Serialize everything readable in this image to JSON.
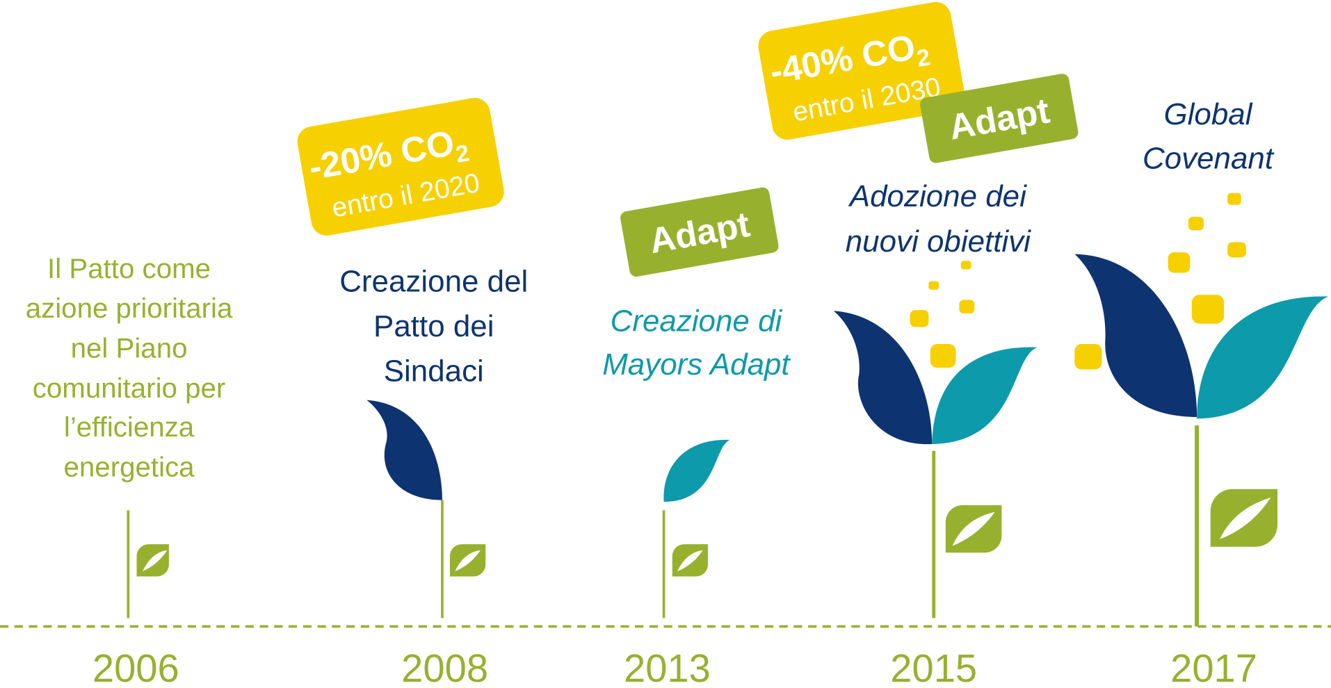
{
  "milestones": [
    {
      "year": "2006",
      "lines": [
        "Il Patto come",
        "azione prioritaria",
        "nel Piano",
        "comunitario per",
        "l’efficienza",
        "energetica"
      ]
    },
    {
      "year": "2008",
      "lines": [
        "Creazione del",
        "Patto dei",
        "Sindaci"
      ],
      "badge": {
        "main": "-20% CO",
        "sub": "2",
        "note": "entro il 2020"
      }
    },
    {
      "year": "2013",
      "lines": [
        "Creazione di",
        "Mayors Adapt"
      ],
      "badge": {
        "main": "Adapt"
      }
    },
    {
      "year": "2015",
      "lines": [
        "Adozione dei",
        "nuovi obiettivi"
      ],
      "badge": {
        "main": "-40% CO",
        "sub": "2",
        "note": "entro il 2030"
      },
      "badge2": {
        "main": "Adapt"
      }
    },
    {
      "year": "2017",
      "lines": [
        "Global",
        "Covenant"
      ]
    }
  ]
}
